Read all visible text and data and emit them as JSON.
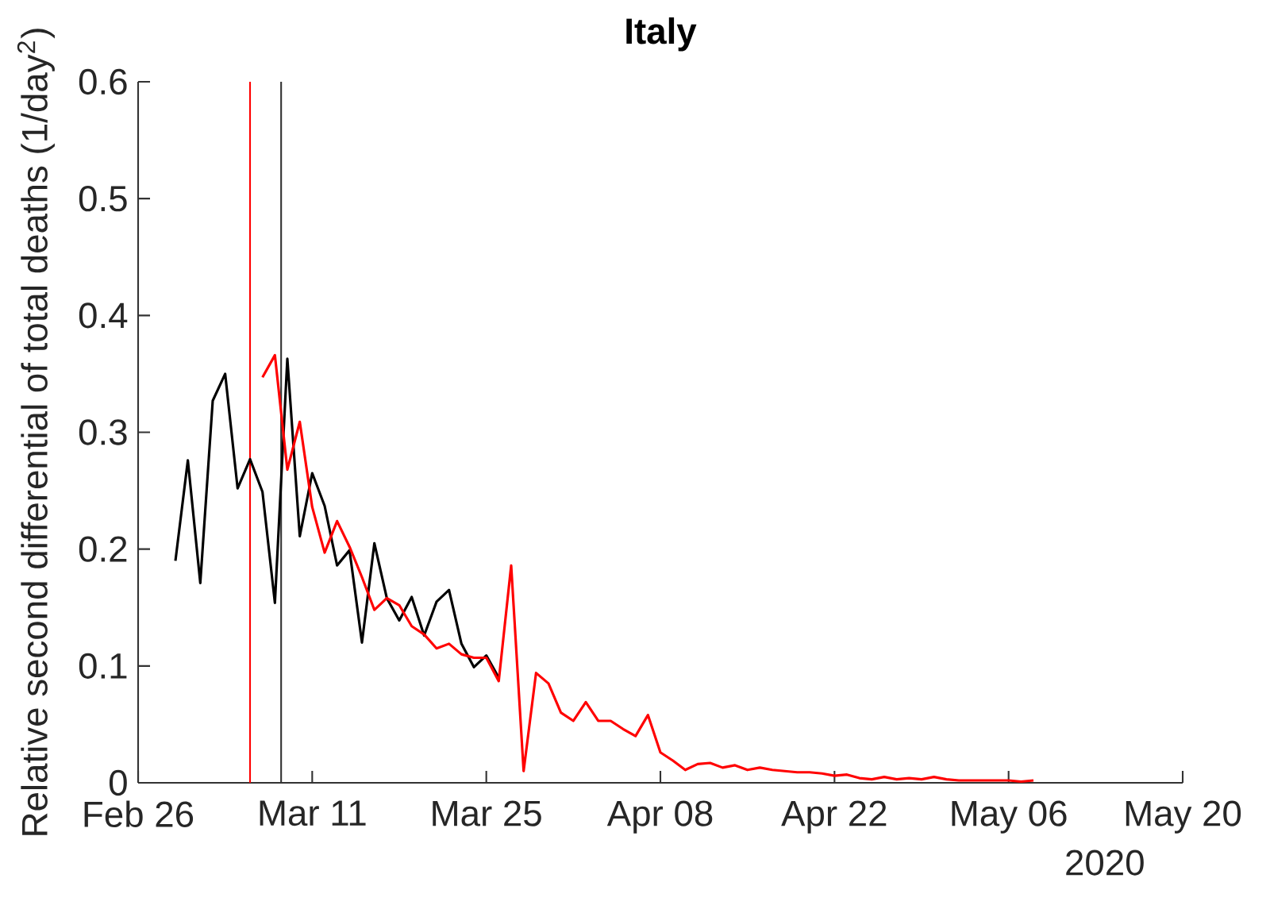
{
  "chart_data": {
    "type": "line",
    "title": "Italy",
    "ylabel": "Relative second differential of total deaths (1/day$^{2}$)",
    "annotations": [
      "2020"
    ],
    "xlim": [
      "2020-02-26",
      "2020-05-20"
    ],
    "xticks": [
      {
        "value": "2020-02-26",
        "label": "Feb 26"
      },
      {
        "value": "2020-03-11",
        "label": "Mar 11"
      },
      {
        "value": "2020-03-25",
        "label": "Mar 25"
      },
      {
        "value": "2020-04-08",
        "label": "Apr 08"
      },
      {
        "value": "2020-04-22",
        "label": "Apr 22"
      },
      {
        "value": "2020-05-06",
        "label": "May 06"
      },
      {
        "value": "2020-05-20",
        "label": "May 20"
      }
    ],
    "ylim": [
      0,
      0.6
    ],
    "yticks": [
      0,
      0.1,
      0.2,
      0.3,
      0.4,
      0.5,
      0.6
    ],
    "ref_lines": [
      {
        "axis": "x",
        "value": "2020-03-06",
        "color": "#ff0000"
      },
      {
        "axis": "x",
        "value": "2020-03-08T12:00",
        "color": "#333333"
      }
    ],
    "series": [
      {
        "color": "#000000",
        "x": [
          "2020-02-29",
          "2020-03-01",
          "2020-03-02",
          "2020-03-03",
          "2020-03-04",
          "2020-03-05",
          "2020-03-06",
          "2020-03-07",
          "2020-03-08",
          "2020-03-09",
          "2020-03-10",
          "2020-03-11",
          "2020-03-12",
          "2020-03-13",
          "2020-03-14",
          "2020-03-15",
          "2020-03-16",
          "2020-03-17",
          "2020-03-18",
          "2020-03-19",
          "2020-03-20",
          "2020-03-21",
          "2020-03-22",
          "2020-03-23",
          "2020-03-24",
          "2020-03-25",
          "2020-03-26"
        ],
        "values": [
          0.19,
          0.276,
          0.171,
          0.327,
          0.35,
          0.252,
          0.277,
          0.249,
          0.154,
          0.363,
          0.211,
          0.265,
          0.237,
          0.186,
          0.199,
          0.12,
          0.205,
          0.158,
          0.139,
          0.159,
          0.126,
          0.155,
          0.165,
          0.119,
          0.099,
          0.109,
          0.09
        ]
      },
      {
        "color": "#ff0000",
        "x": [
          "2020-03-07",
          "2020-03-08",
          "2020-03-09",
          "2020-03-10",
          "2020-03-11",
          "2020-03-12",
          "2020-03-13",
          "2020-03-14",
          "2020-03-15",
          "2020-03-16",
          "2020-03-17",
          "2020-03-18",
          "2020-03-19",
          "2020-03-20",
          "2020-03-21",
          "2020-03-22",
          "2020-03-23",
          "2020-03-24",
          "2020-03-25",
          "2020-03-26",
          "2020-03-27",
          "2020-03-28",
          "2020-03-29",
          "2020-03-30",
          "2020-03-31",
          "2020-04-01",
          "2020-04-02",
          "2020-04-03",
          "2020-04-04",
          "2020-04-05",
          "2020-04-06",
          "2020-04-07",
          "2020-04-08",
          "2020-04-09",
          "2020-04-10",
          "2020-04-11",
          "2020-04-12",
          "2020-04-13",
          "2020-04-14",
          "2020-04-15",
          "2020-04-16",
          "2020-04-17",
          "2020-04-18",
          "2020-04-19",
          "2020-04-20",
          "2020-04-21",
          "2020-04-22",
          "2020-04-23",
          "2020-04-24",
          "2020-04-25",
          "2020-04-26",
          "2020-04-27",
          "2020-04-28",
          "2020-04-29",
          "2020-04-30",
          "2020-05-01",
          "2020-05-02",
          "2020-05-03",
          "2020-05-04",
          "2020-05-05",
          "2020-05-06",
          "2020-05-07",
          "2020-05-08"
        ],
        "values": [
          0.347,
          0.366,
          0.268,
          0.309,
          0.236,
          0.197,
          0.224,
          0.202,
          0.176,
          0.148,
          0.158,
          0.152,
          0.134,
          0.127,
          0.115,
          0.119,
          0.11,
          0.107,
          0.107,
          0.087,
          0.186,
          0.01,
          0.094,
          0.085,
          0.06,
          0.053,
          0.069,
          0.053,
          0.053,
          0.046,
          0.04,
          0.058,
          0.026,
          0.019,
          0.011,
          0.016,
          0.017,
          0.013,
          0.015,
          0.011,
          0.013,
          0.011,
          0.01,
          0.009,
          0.009,
          0.008,
          0.006,
          0.007,
          0.004,
          0.003,
          0.005,
          0.003,
          0.004,
          0.003,
          0.005,
          0.003,
          0.002,
          0.002,
          0.002,
          0.002,
          0.002,
          0.001,
          0.002
        ]
      }
    ]
  }
}
